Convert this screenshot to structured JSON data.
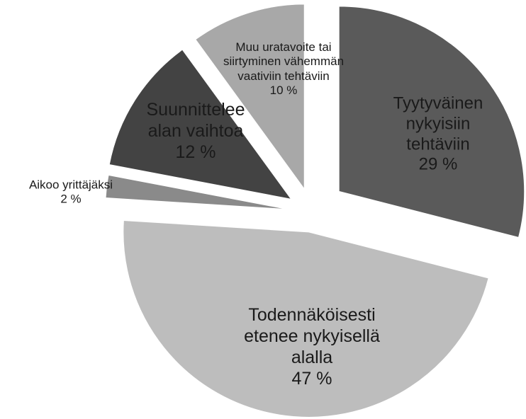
{
  "chart_data": {
    "type": "pie",
    "categories": [
      "Tyytyväinen nykyisiin tehtäviin",
      "Todennäköisesti etenee nykyisellä alalla",
      "Aikoo yrittäjäksi",
      "Suunnittelee alan vaihtoa",
      "Muu uratavoite tai siirtyminen vähemmän vaativiin tehtäviin"
    ],
    "values": [
      29,
      47,
      2,
      12,
      10
    ],
    "value_labels": [
      "29 %",
      "47 %",
      "2 %",
      "12 %",
      "10 %"
    ],
    "colors": [
      "#5a5a5a",
      "#bdbdbd",
      "#8a8a8a",
      "#434343",
      "#a8a8a8"
    ]
  }
}
